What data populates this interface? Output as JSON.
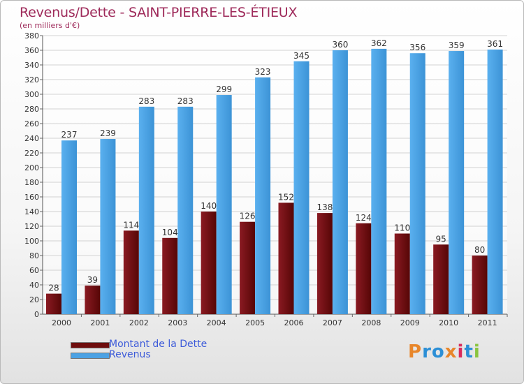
{
  "header": {
    "title": "Revenus/Dette - SAINT-PIERRE-LES-ÉTIEUX",
    "subtitle": "(en milliers d'€)"
  },
  "legend": {
    "items": [
      {
        "label": "Montant de la Dette",
        "color": "#6e0d0d"
      },
      {
        "label": "Revenus",
        "color": "#4ca2e4"
      }
    ]
  },
  "logo": {
    "text": "Proxiti",
    "letter_colors": [
      "#e8862a",
      "#2c8fd6",
      "#2c8fd6",
      "#e8862a",
      "#d92b5b",
      "#2c8fd6",
      "#8ac43f"
    ]
  },
  "chart_data": {
    "type": "bar",
    "categories": [
      "2000",
      "2001",
      "2002",
      "2003",
      "2004",
      "2005",
      "2006",
      "2007",
      "2008",
      "2009",
      "2010",
      "2011"
    ],
    "series": [
      {
        "name": "Montant de la Dette",
        "values": [
          28,
          39,
          114,
          104,
          140,
          126,
          152,
          138,
          124,
          110,
          95,
          80
        ],
        "color": "#6e0d0d"
      },
      {
        "name": "Revenus",
        "values": [
          237,
          239,
          283,
          283,
          299,
          323,
          345,
          360,
          362,
          356,
          359,
          361
        ],
        "color": "#4ca2e4"
      }
    ],
    "ylim": [
      0,
      380
    ],
    "ytick_step": 20,
    "grid": true,
    "legend_position": "bottom-left"
  }
}
